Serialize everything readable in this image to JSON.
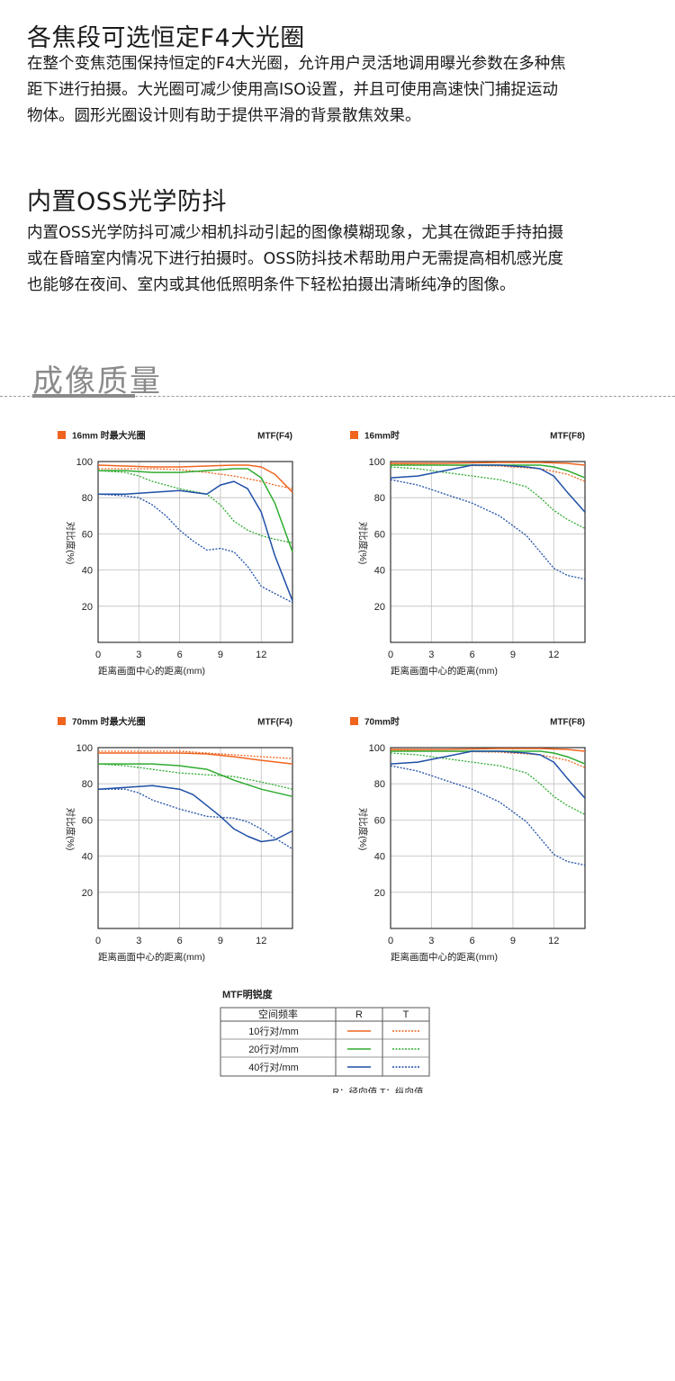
{
  "feature1": {
    "title": "各焦段可选恒定F4大光圈",
    "lines": [
      "在整个变焦范围保持恒定的F4大光圈，允许用户灵活地调用曝光参数在多种焦",
      "距下进行拍摄。大光圈可减少使用高ISO设置，并且可使用高速快门捕捉运动",
      "物体。圆形光圈设计则有助于提供平滑的背景散焦效果。"
    ]
  },
  "feature2": {
    "title": "内置OSS光学防抖",
    "lines": [
      "内置OSS光学防抖可减少相机抖动引起的图像模糊现象，尤其在微距手持拍摄",
      "或在昏暗室内情况下进行拍摄时。OSS防抖技术帮助用户无需提高相机感光度",
      "也能够在夜间、室内或其他低照明条件下轻松拍摄出清晰纯净的图像。"
    ]
  },
  "section": {
    "title": "成像质量"
  },
  "colors": {
    "orange": "#f0641e",
    "green": "#2fab2f",
    "blue": "#1f4fa6",
    "axis": "#333333",
    "grid": "#bfbfbf"
  },
  "legend": {
    "title": "MTF明锐度",
    "header": [
      "空间频率",
      "R",
      "T"
    ],
    "rows": [
      "10行对/mm",
      "20行对/mm",
      "40行对/mm"
    ],
    "note": "R：径向值  T：纵向值"
  },
  "chart_data": [
    {
      "type": "line",
      "title": "16mm 时最大光圈",
      "mtf_label": "MTF(F4)",
      "xlabel": "距离画面中心的距离(mm)",
      "ylabel": "对比度(%)",
      "xlim": [
        0,
        14.3
      ],
      "ylim": [
        0,
        100
      ],
      "xticks": [
        0,
        3,
        6,
        9,
        12
      ],
      "yticks": [
        20,
        40,
        60,
        80,
        100
      ],
      "series": [
        {
          "freq": "10",
          "mode": "R",
          "x": [
            0,
            2,
            4,
            6,
            8,
            10,
            11,
            12,
            13,
            14.3
          ],
          "y": [
            98,
            97.5,
            97,
            97,
            97.5,
            98,
            98,
            97,
            93,
            83
          ]
        },
        {
          "freq": "10",
          "mode": "T",
          "x": [
            0,
            2,
            4,
            6,
            8,
            10,
            12,
            13,
            14.3
          ],
          "y": [
            96,
            96,
            96,
            95.5,
            94,
            92,
            89,
            87,
            85
          ]
        },
        {
          "freq": "20",
          "mode": "R",
          "x": [
            0,
            2,
            4,
            6,
            8,
            10,
            11,
            12,
            13,
            14.3
          ],
          "y": [
            95,
            95,
            94,
            94,
            95,
            96,
            96,
            91,
            77,
            50
          ]
        },
        {
          "freq": "20",
          "mode": "T",
          "x": [
            0,
            2,
            3,
            4,
            6,
            8,
            9,
            10,
            11,
            12,
            13,
            14.3
          ],
          "y": [
            95,
            94,
            92,
            89,
            85,
            82,
            76,
            67,
            62,
            59,
            57,
            55
          ]
        },
        {
          "freq": "40",
          "mode": "R",
          "x": [
            0,
            2,
            4,
            6,
            7,
            8,
            9,
            10,
            11,
            12,
            13,
            14.3
          ],
          "y": [
            82,
            82,
            83,
            84,
            83,
            82,
            87,
            89,
            85,
            72,
            48,
            23
          ]
        },
        {
          "freq": "40",
          "mode": "T",
          "x": [
            0,
            2,
            3,
            4,
            5,
            6,
            7,
            8,
            9,
            10,
            11,
            12,
            13,
            14.3
          ],
          "y": [
            82,
            81,
            80,
            76,
            70,
            62,
            56,
            51,
            52,
            50,
            42,
            31,
            27,
            22
          ]
        }
      ]
    },
    {
      "type": "line",
      "title": "16mm时",
      "mtf_label": "MTF(F8)",
      "xlabel": "距离画面中心的距离(mm)",
      "ylabel": "对比度(%)",
      "xlim": [
        0,
        14.3
      ],
      "ylim": [
        0,
        100
      ],
      "xticks": [
        0,
        3,
        6,
        9,
        12
      ],
      "yticks": [
        20,
        40,
        60,
        80,
        100
      ],
      "series": [
        {
          "freq": "10",
          "mode": "R",
          "x": [
            0,
            4,
            8,
            11,
            13,
            14.3
          ],
          "y": [
            99,
            99,
            99.5,
            99.5,
            99,
            98
          ]
        },
        {
          "freq": "10",
          "mode": "T",
          "x": [
            0,
            4,
            8,
            11,
            13,
            14.3
          ],
          "y": [
            98.5,
            98,
            97.5,
            96,
            93,
            89
          ]
        },
        {
          "freq": "20",
          "mode": "R",
          "x": [
            0,
            3,
            6,
            9,
            11,
            12,
            13,
            14.3
          ],
          "y": [
            98,
            98,
            98,
            98,
            98,
            97,
            95,
            91
          ]
        },
        {
          "freq": "20",
          "mode": "T",
          "x": [
            0,
            2,
            4,
            6,
            8,
            10,
            11,
            12,
            13,
            14.3
          ],
          "y": [
            97,
            96,
            94,
            92,
            90,
            86,
            80,
            73,
            68,
            63
          ]
        },
        {
          "freq": "40",
          "mode": "R",
          "x": [
            0,
            2,
            4,
            6,
            8,
            10,
            11,
            12,
            13,
            14.3
          ],
          "y": [
            91,
            92,
            95,
            98,
            98,
            97,
            96,
            92,
            83,
            72
          ]
        },
        {
          "freq": "40",
          "mode": "T",
          "x": [
            0,
            2,
            4,
            6,
            8,
            10,
            11,
            12,
            13,
            14.3
          ],
          "y": [
            90,
            87,
            82,
            77,
            70,
            59,
            50,
            41,
            37,
            35
          ]
        }
      ]
    },
    {
      "type": "line",
      "title": "70mm 时最大光圈",
      "mtf_label": "MTF(F4)",
      "xlabel": "距离画面中心的距离(mm)",
      "ylabel": "对比度(%)",
      "xlim": [
        0,
        14.3
      ],
      "ylim": [
        0,
        100
      ],
      "xticks": [
        0,
        3,
        6,
        9,
        12
      ],
      "yticks": [
        20,
        40,
        60,
        80,
        100
      ],
      "series": [
        {
          "freq": "10",
          "mode": "R",
          "x": [
            0,
            3,
            6,
            8,
            10,
            12,
            14.3
          ],
          "y": [
            97,
            97,
            97,
            96.5,
            95,
            93,
            91
          ]
        },
        {
          "freq": "10",
          "mode": "T",
          "x": [
            0,
            3,
            6,
            8,
            10,
            12,
            14.3
          ],
          "y": [
            98,
            98,
            98,
            97,
            96,
            95,
            94
          ]
        },
        {
          "freq": "20",
          "mode": "R",
          "x": [
            0,
            2,
            4,
            6,
            8,
            10,
            12,
            14.3
          ],
          "y": [
            91,
            91,
            91,
            90,
            88,
            82,
            77,
            73
          ]
        },
        {
          "freq": "20",
          "mode": "T",
          "x": [
            0,
            2,
            4,
            6,
            8,
            10,
            12,
            14.3
          ],
          "y": [
            91,
            90,
            88,
            86,
            85,
            84,
            81,
            77
          ]
        },
        {
          "freq": "40",
          "mode": "R",
          "x": [
            0,
            2,
            4,
            6,
            7,
            8,
            9,
            10,
            11,
            12,
            13,
            14.3
          ],
          "y": [
            77,
            78,
            79,
            77,
            74,
            68,
            62,
            55,
            51,
            48,
            49,
            54
          ]
        },
        {
          "freq": "40",
          "mode": "T",
          "x": [
            0,
            2,
            3,
            4,
            6,
            8,
            10,
            11,
            12,
            13,
            14.3
          ],
          "y": [
            77,
            77,
            75,
            71,
            66,
            62,
            61,
            59,
            55,
            50,
            44
          ]
        }
      ]
    },
    {
      "type": "line",
      "title": "70mm时",
      "mtf_label": "MTF(F8)",
      "xlabel": "距离画面中心的距离(mm)",
      "ylabel": "对比度(%)",
      "xlim": [
        0,
        14.3
      ],
      "ylim": [
        0,
        100
      ],
      "xticks": [
        0,
        3,
        6,
        9,
        12
      ],
      "yticks": [
        20,
        40,
        60,
        80,
        100
      ],
      "series": [
        {
          "freq": "10",
          "mode": "R",
          "x": [
            0,
            4,
            8,
            11,
            13,
            14.3
          ],
          "y": [
            99,
            99,
            99.5,
            99.5,
            99,
            98
          ]
        },
        {
          "freq": "10",
          "mode": "T",
          "x": [
            0,
            4,
            8,
            11,
            13,
            14.3
          ],
          "y": [
            98.5,
            98,
            97.5,
            96,
            93,
            89
          ]
        },
        {
          "freq": "20",
          "mode": "R",
          "x": [
            0,
            3,
            6,
            9,
            11,
            12,
            13,
            14.3
          ],
          "y": [
            98,
            98,
            98,
            98,
            98,
            97,
            95,
            91
          ]
        },
        {
          "freq": "20",
          "mode": "T",
          "x": [
            0,
            2,
            4,
            6,
            8,
            10,
            11,
            12,
            13,
            14.3
          ],
          "y": [
            97,
            96,
            94,
            92,
            90,
            86,
            80,
            73,
            68,
            63
          ]
        },
        {
          "freq": "40",
          "mode": "R",
          "x": [
            0,
            2,
            4,
            6,
            8,
            10,
            11,
            12,
            13,
            14.3
          ],
          "y": [
            91,
            92,
            95,
            98,
            98,
            97,
            96,
            92,
            83,
            72
          ]
        },
        {
          "freq": "40",
          "mode": "T",
          "x": [
            0,
            2,
            4,
            6,
            8,
            10,
            11,
            12,
            13,
            14.3
          ],
          "y": [
            90,
            87,
            82,
            77,
            70,
            59,
            50,
            41,
            37,
            35
          ]
        }
      ]
    }
  ]
}
